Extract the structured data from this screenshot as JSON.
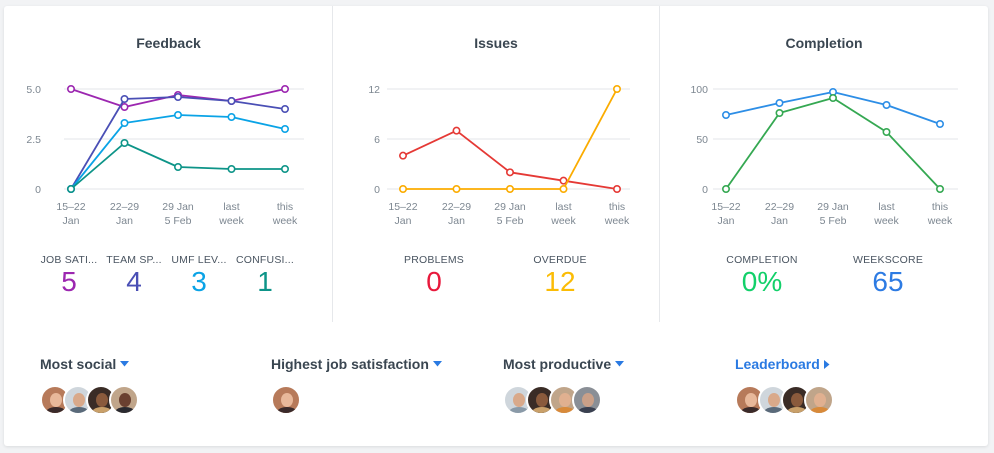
{
  "colors": {
    "purple": "#9c27b0",
    "indigo": "#4a4fb5",
    "lightblue": "#0aa3e6",
    "teal": "#0d9488",
    "red": "#e53935",
    "orange": "#fbac00",
    "blue": "#2d8ee6",
    "green": "#35a852",
    "val_red": "#e8193c",
    "val_yellow": "#fbbc05",
    "val_green": "#12d06a",
    "val_blue": "#2d7be3"
  },
  "feedback": {
    "title": "Feedback",
    "metrics": [
      {
        "label": "JOB SATI...",
        "value": "5",
        "color": "#9c27b0"
      },
      {
        "label": "TEAM SP...",
        "value": "4",
        "color": "#4a4fb5"
      },
      {
        "label": "UMF LEV...",
        "value": "3",
        "color": "#0aa3e6"
      },
      {
        "label": "CONFUSI...",
        "value": "1",
        "color": "#0d9488"
      }
    ]
  },
  "issues": {
    "title": "Issues",
    "metrics": [
      {
        "label": "PROBLEMS",
        "value": "0",
        "color": "#e8193c"
      },
      {
        "label": "OVERDUE",
        "value": "12",
        "color": "#fbbc05"
      }
    ]
  },
  "completion": {
    "title": "Completion",
    "metrics": [
      {
        "label": "COMPLETION",
        "value": "0%",
        "color": "#12d06a"
      },
      {
        "label": "WEEKSCORE",
        "value": "65",
        "color": "#2d7be3"
      }
    ]
  },
  "sections": {
    "most_social": {
      "title": "Most social",
      "icon": "caret-down-icon"
    },
    "highest_job_satisfaction": {
      "title": "Highest job satisfaction",
      "icon": "caret-down-icon"
    },
    "most_productive": {
      "title": "Most productive",
      "icon": "caret-down-icon"
    },
    "leaderboard": {
      "title": "Leaderboard",
      "icon": "caret-right-icon"
    }
  },
  "chart_data": [
    {
      "type": "line",
      "title": "Feedback",
      "x": [
        [
          "15–22",
          "Jan"
        ],
        [
          "22–29",
          "Jan"
        ],
        [
          "29 Jan",
          "5 Feb"
        ],
        [
          "last",
          "week"
        ],
        [
          "this",
          "week"
        ]
      ],
      "ylim": [
        0,
        5
      ],
      "yticks": [
        "0",
        "2.5",
        "5.0"
      ],
      "grid": true,
      "series": [
        {
          "values": [
            5.0,
            4.1,
            4.7,
            4.4,
            5.0
          ],
          "color": "#9c27b0"
        },
        {
          "values": [
            0,
            4.5,
            4.6,
            4.4,
            4.0
          ],
          "color": "#4a4fb5"
        },
        {
          "values": [
            0,
            3.3,
            3.7,
            3.6,
            3.0
          ],
          "color": "#0aa3e6"
        },
        {
          "values": [
            0,
            2.3,
            1.1,
            1.0,
            1.0
          ],
          "color": "#0d9488"
        }
      ]
    },
    {
      "type": "line",
      "title": "Issues",
      "x": [
        [
          "15–22",
          "Jan"
        ],
        [
          "22–29",
          "Jan"
        ],
        [
          "29 Jan",
          "5 Feb"
        ],
        [
          "last",
          "week"
        ],
        [
          "this",
          "week"
        ]
      ],
      "ylim": [
        0,
        12
      ],
      "yticks": [
        "0",
        "6",
        "12"
      ],
      "grid": true,
      "series": [
        {
          "values": [
            4,
            7,
            2,
            1,
            0
          ],
          "color": "#e53935"
        },
        {
          "values": [
            0,
            0,
            0,
            0,
            12
          ],
          "color": "#fbac00"
        }
      ]
    },
    {
      "type": "line",
      "title": "Completion",
      "x": [
        [
          "15–22",
          "Jan"
        ],
        [
          "22–29",
          "Jan"
        ],
        [
          "29 Jan",
          "5 Feb"
        ],
        [
          "last",
          "week"
        ],
        [
          "this",
          "week"
        ]
      ],
      "ylim": [
        0,
        100
      ],
      "yticks": [
        "0",
        "50",
        "100"
      ],
      "grid": true,
      "series": [
        {
          "values": [
            74,
            86,
            97,
            84,
            65
          ],
          "color": "#2d8ee6"
        },
        {
          "values": [
            0,
            76,
            91,
            57,
            0
          ],
          "color": "#35a852"
        }
      ]
    }
  ]
}
